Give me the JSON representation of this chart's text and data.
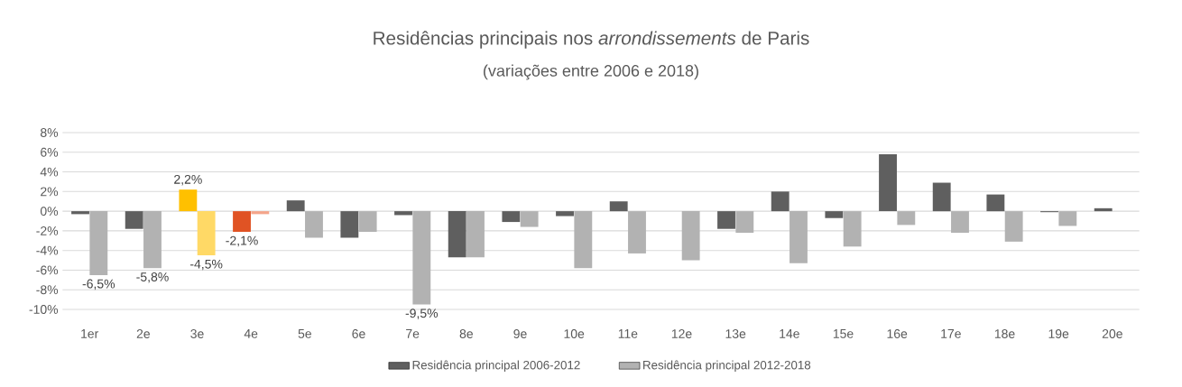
{
  "chart_data": {
    "type": "bar",
    "title": "Residências principais nos *arrondissements* de Paris",
    "subtitle": "(variações entre 2006 e 2018)",
    "categories": [
      "1er",
      "2e",
      "3e",
      "4e",
      "5e",
      "6e",
      "7e",
      "8e",
      "9e",
      "10e",
      "11e",
      "12e",
      "13e",
      "14e",
      "15e",
      "16e",
      "17e",
      "18e",
      "19e",
      "20e"
    ],
    "series": [
      {
        "name": "Residência principal 2006-2012",
        "color": "#5f5f5f",
        "values": [
          -0.3,
          -1.8,
          2.2,
          -2.1,
          1.1,
          -2.7,
          -0.4,
          -4.7,
          -1.1,
          -0.5,
          1.0,
          0,
          -1.8,
          2.0,
          -0.7,
          5.8,
          2.9,
          1.7,
          -0.1,
          0.3
        ],
        "colors": [
          "#5f5f5f",
          "#5f5f5f",
          "#ffc000",
          "#e05324",
          "#5f5f5f",
          "#5f5f5f",
          "#5f5f5f",
          "#5f5f5f",
          "#5f5f5f",
          "#5f5f5f",
          "#5f5f5f",
          "#5f5f5f",
          "#5f5f5f",
          "#5f5f5f",
          "#5f5f5f",
          "#5f5f5f",
          "#5f5f5f",
          "#5f5f5f",
          "#5f5f5f",
          "#5f5f5f"
        ],
        "value_labels": [
          null,
          null,
          "2,2%",
          "-2,1%",
          null,
          null,
          null,
          null,
          null,
          null,
          null,
          null,
          null,
          null,
          null,
          null,
          null,
          null,
          null,
          null
        ]
      },
      {
        "name": "Residência principal 2012-2018",
        "color": "#b2b2b2",
        "values": [
          -6.5,
          -5.8,
          -4.5,
          -0.3,
          -2.7,
          -2.1,
          -9.5,
          -4.7,
          -1.6,
          -5.8,
          -4.3,
          -5.0,
          -2.2,
          -5.3,
          -3.6,
          -1.4,
          -2.2,
          -3.1,
          -1.5,
          0
        ],
        "colors": [
          "#b2b2b2",
          "#b2b2b2",
          "#ffd966",
          "#f4a58a",
          "#b2b2b2",
          "#b2b2b2",
          "#b2b2b2",
          "#b2b2b2",
          "#b2b2b2",
          "#b2b2b2",
          "#b2b2b2",
          "#b2b2b2",
          "#b2b2b2",
          "#b2b2b2",
          "#b2b2b2",
          "#b2b2b2",
          "#b2b2b2",
          "#b2b2b2",
          "#b2b2b2",
          "#b2b2b2"
        ],
        "value_labels": [
          "-6,5%",
          "-5,8%",
          "-4,5%",
          null,
          null,
          null,
          "-9,5%",
          null,
          null,
          null,
          null,
          null,
          null,
          null,
          null,
          null,
          null,
          null,
          null,
          null
        ]
      }
    ],
    "ylim": [
      -10,
      8
    ],
    "yticks": [
      {
        "value": -10,
        "label": "-10%"
      },
      {
        "value": -8,
        "label": "-8%"
      },
      {
        "value": -6,
        "label": "-6%"
      },
      {
        "value": -4,
        "label": "-4%"
      },
      {
        "value": -2,
        "label": "-2%"
      },
      {
        "value": 0,
        "label": "0%"
      },
      {
        "value": 2,
        "label": "2%"
      },
      {
        "value": 4,
        "label": "4%"
      },
      {
        "value": 6,
        "label": "6%"
      },
      {
        "value": 8,
        "label": "8%"
      }
    ],
    "grid": "y",
    "legend": "bottom"
  }
}
